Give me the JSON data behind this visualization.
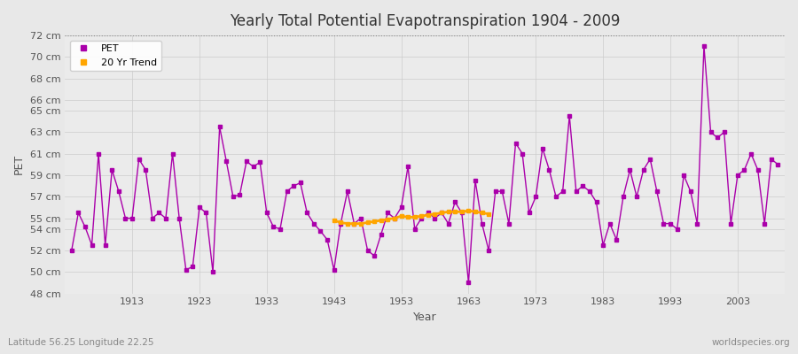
{
  "title": "Yearly Total Potential Evapotranspiration 1904 - 2009",
  "xlabel": "Year",
  "ylabel": "PET",
  "lat_lon_label": "Latitude 56.25 Longitude 22.25",
  "watermark": "worldspecies.org",
  "background_color": "#e8e8e8",
  "plot_bg_color": "#ebebeb",
  "pet_color": "#aa00aa",
  "trend_color": "#ffa500",
  "ylim": [
    48,
    72
  ],
  "yticks": [
    48,
    50,
    52,
    54,
    55,
    57,
    59,
    61,
    63,
    65,
    66,
    68,
    70,
    72
  ],
  "ytick_labels": [
    "48 cm",
    "50 cm",
    "52 cm",
    "54 cm",
    "55 cm",
    "57 cm",
    "59 cm",
    "61 cm",
    "63 cm",
    "65 cm",
    "66 cm",
    "68 cm",
    "70 cm",
    "72 cm"
  ],
  "years": [
    1904,
    1905,
    1906,
    1907,
    1908,
    1909,
    1910,
    1911,
    1912,
    1913,
    1914,
    1915,
    1916,
    1917,
    1918,
    1919,
    1920,
    1921,
    1922,
    1923,
    1924,
    1925,
    1926,
    1927,
    1928,
    1929,
    1930,
    1931,
    1932,
    1933,
    1934,
    1935,
    1936,
    1937,
    1938,
    1939,
    1940,
    1941,
    1942,
    1943,
    1944,
    1945,
    1946,
    1947,
    1948,
    1949,
    1950,
    1951,
    1952,
    1953,
    1954,
    1955,
    1956,
    1957,
    1958,
    1959,
    1960,
    1961,
    1962,
    1963,
    1964,
    1965,
    1966,
    1967,
    1968,
    1969,
    1970,
    1971,
    1972,
    1973,
    1974,
    1975,
    1976,
    1977,
    1978,
    1979,
    1980,
    1981,
    1982,
    1983,
    1984,
    1985,
    1986,
    1987,
    1988,
    1989,
    1990,
    1991,
    1992,
    1993,
    1994,
    1995,
    1996,
    1997,
    1998,
    1999,
    2000,
    2001,
    2002,
    2003,
    2004,
    2005,
    2006,
    2007,
    2008,
    2009
  ],
  "pet_values": [
    52.0,
    55.5,
    54.2,
    52.5,
    61.0,
    52.5,
    59.5,
    57.5,
    55.0,
    55.0,
    60.5,
    59.5,
    55.0,
    55.5,
    55.0,
    61.0,
    55.0,
    50.2,
    50.5,
    56.0,
    55.5,
    50.0,
    63.5,
    60.3,
    57.0,
    57.2,
    60.3,
    59.8,
    60.2,
    55.5,
    54.2,
    54.0,
    57.5,
    58.0,
    58.3,
    55.5,
    54.5,
    53.8,
    53.0,
    50.2,
    54.5,
    57.5,
    54.5,
    55.0,
    52.0,
    51.5,
    53.5,
    55.5,
    55.0,
    56.0,
    59.8,
    54.0,
    55.0,
    55.5,
    55.0,
    55.5,
    54.5,
    56.5,
    55.5,
    49.0,
    58.5,
    54.5,
    52.0,
    57.5,
    57.5,
    54.5,
    62.0,
    61.0,
    55.5,
    57.0,
    61.5,
    59.5,
    57.0,
    57.5,
    64.5,
    57.5,
    58.0,
    57.5,
    56.5,
    52.5,
    54.5,
    53.0,
    57.0,
    59.5,
    57.0,
    59.5,
    60.5,
    57.5,
    54.5,
    54.5,
    54.0,
    59.0,
    57.5,
    54.5,
    71.0,
    63.0,
    62.5,
    63.0,
    54.5,
    59.0,
    59.5,
    61.0,
    59.5,
    54.5,
    60.5,
    60.0
  ],
  "trend_years": [
    1943,
    1944,
    1945,
    1946,
    1947,
    1948,
    1949,
    1950,
    1951,
    1952,
    1953,
    1954,
    1955,
    1956,
    1957,
    1958,
    1959,
    1960,
    1961,
    1962,
    1963,
    1964,
    1965,
    1966
  ],
  "trend_values": [
    54.8,
    54.6,
    54.5,
    54.5,
    54.5,
    54.6,
    54.7,
    54.8,
    54.9,
    55.0,
    55.2,
    55.1,
    55.1,
    55.2,
    55.3,
    55.4,
    55.5,
    55.6,
    55.6,
    55.6,
    55.7,
    55.6,
    55.5,
    55.4
  ]
}
